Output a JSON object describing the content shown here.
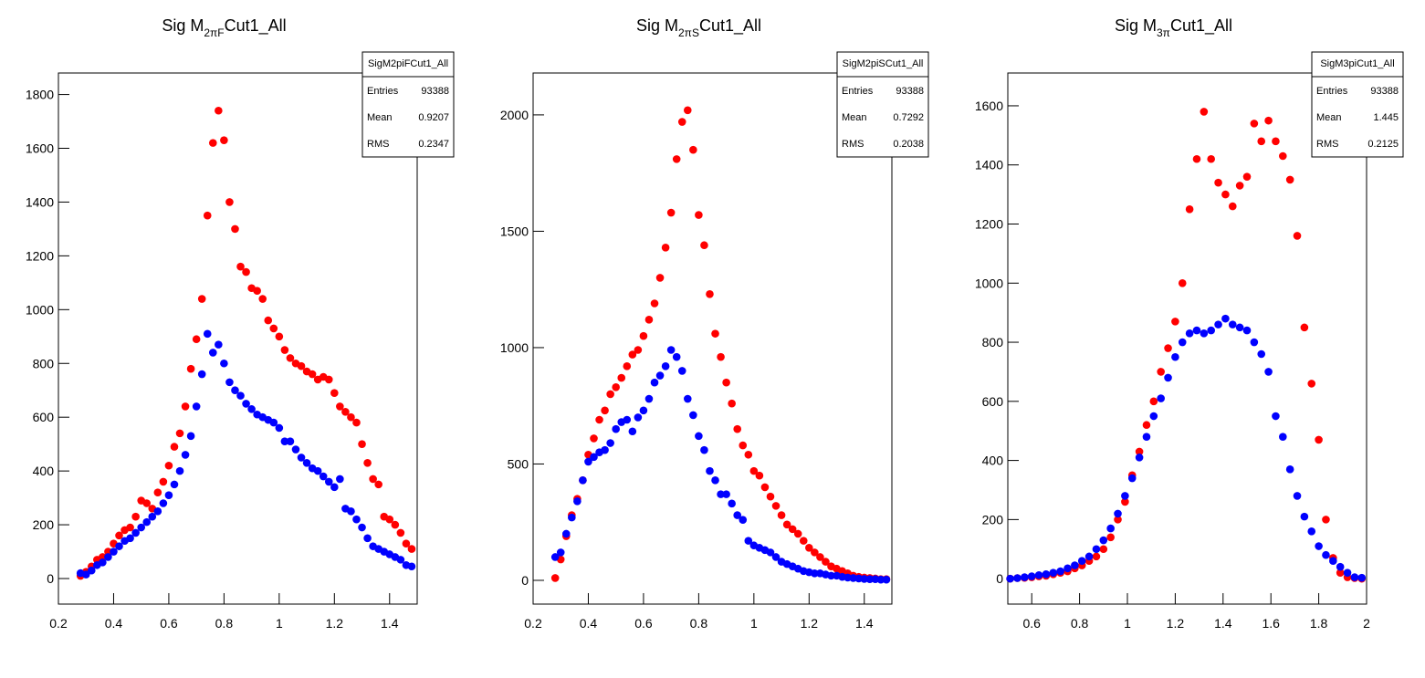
{
  "chart_data": [
    {
      "type": "scatter",
      "title": "Sig M",
      "title_subscript": "2πF",
      "title_suffix": "Cut1_All",
      "stats": {
        "name": "SigM2piFCut1_All",
        "rows": [
          {
            "label": "Entries",
            "value": 93388
          },
          {
            "label": "Mean",
            "value": 0.9207
          },
          {
            "label": "RMS",
            "value": 0.2347
          }
        ]
      },
      "xlim": [
        0.2,
        1.5
      ],
      "xticks": [
        0.2,
        0.4,
        0.6,
        0.8,
        1,
        1.2,
        1.4
      ],
      "ylim": [
        -95,
        1880
      ],
      "yticks": [
        0,
        200,
        400,
        600,
        800,
        1000,
        1200,
        1400,
        1600,
        1800
      ],
      "x": [
        0.28,
        0.3,
        0.32,
        0.34,
        0.36,
        0.38,
        0.4,
        0.42,
        0.44,
        0.46,
        0.48,
        0.5,
        0.52,
        0.54,
        0.56,
        0.58,
        0.6,
        0.62,
        0.64,
        0.66,
        0.68,
        0.7,
        0.72,
        0.74,
        0.76,
        0.78,
        0.8,
        0.82,
        0.84,
        0.86,
        0.88,
        0.9,
        0.92,
        0.94,
        0.96,
        0.98,
        1,
        1.02,
        1.04,
        1.06,
        1.08,
        1.1,
        1.12,
        1.14,
        1.16,
        1.18,
        1.2,
        1.22,
        1.24,
        1.26,
        1.28,
        1.3,
        1.32,
        1.34,
        1.36,
        1.38,
        1.4,
        1.42,
        1.44,
        1.46,
        1.48
      ],
      "series": [
        {
          "color": "#ff0000",
          "values": [
            10,
            25,
            45,
            70,
            80,
            100,
            130,
            160,
            180,
            190,
            230,
            290,
            280,
            260,
            320,
            360,
            420,
            490,
            540,
            640,
            780,
            890,
            1040,
            1350,
            1620,
            1740,
            1630,
            1400,
            1300,
            1160,
            1140,
            1080,
            1070,
            1040,
            960,
            930,
            900,
            850,
            820,
            800,
            790,
            770,
            760,
            740,
            750,
            740,
            690,
            640,
            620,
            600,
            580,
            500,
            430,
            370,
            350,
            230,
            220,
            200,
            170,
            130,
            110
          ]
        },
        {
          "color": "#0000ff",
          "values": [
            20,
            15,
            30,
            50,
            60,
            80,
            100,
            120,
            140,
            150,
            170,
            190,
            210,
            230,
            250,
            280,
            310,
            350,
            400,
            460,
            530,
            640,
            760,
            910,
            840,
            870,
            800,
            730,
            700,
            680,
            650,
            630,
            610,
            600,
            590,
            580,
            560,
            510,
            510,
            480,
            450,
            430,
            410,
            400,
            380,
            360,
            340,
            370,
            260,
            250,
            220,
            190,
            150,
            120,
            110,
            100,
            90,
            80,
            70,
            50,
            45
          ]
        }
      ]
    },
    {
      "type": "scatter",
      "title": "Sig M",
      "title_subscript": "2πS",
      "title_suffix": "Cut1_All",
      "stats": {
        "name": "SigM2piSCut1_All",
        "rows": [
          {
            "label": "Entries",
            "value": 93388
          },
          {
            "label": "Mean",
            "value": 0.7292
          },
          {
            "label": "RMS",
            "value": 0.2038
          }
        ]
      },
      "xlim": [
        0.2,
        1.5
      ],
      "xticks": [
        0.2,
        0.4,
        0.6,
        0.8,
        1,
        1.2,
        1.4
      ],
      "ylim": [
        -102,
        2180
      ],
      "yticks": [
        0,
        500,
        1000,
        1500,
        2000
      ],
      "x": [
        0.28,
        0.3,
        0.32,
        0.34,
        0.36,
        0.38,
        0.4,
        0.42,
        0.44,
        0.46,
        0.48,
        0.5,
        0.52,
        0.54,
        0.56,
        0.58,
        0.6,
        0.62,
        0.64,
        0.66,
        0.68,
        0.7,
        0.72,
        0.74,
        0.76,
        0.78,
        0.8,
        0.82,
        0.84,
        0.86,
        0.88,
        0.9,
        0.92,
        0.94,
        0.96,
        0.98,
        1,
        1.02,
        1.04,
        1.06,
        1.08,
        1.1,
        1.12,
        1.14,
        1.16,
        1.18,
        1.2,
        1.22,
        1.24,
        1.26,
        1.28,
        1.3,
        1.32,
        1.34,
        1.36,
        1.38,
        1.4,
        1.42,
        1.44,
        1.46,
        1.48
      ],
      "series": [
        {
          "color": "#ff0000",
          "values": [
            10,
            90,
            190,
            280,
            350,
            430,
            540,
            610,
            690,
            730,
            800,
            830,
            870,
            920,
            970,
            990,
            1050,
            1120,
            1190,
            1300,
            1430,
            1580,
            1810,
            1970,
            2020,
            1850,
            1570,
            1440,
            1230,
            1060,
            960,
            850,
            760,
            650,
            580,
            540,
            470,
            450,
            400,
            360,
            320,
            280,
            240,
            220,
            200,
            170,
            140,
            120,
            100,
            80,
            60,
            50,
            40,
            30,
            20,
            15,
            12,
            10,
            8,
            5,
            5
          ]
        },
        {
          "color": "#0000ff",
          "values": [
            100,
            120,
            200,
            270,
            340,
            430,
            510,
            530,
            550,
            560,
            590,
            650,
            680,
            690,
            640,
            700,
            730,
            780,
            850,
            880,
            920,
            990,
            960,
            900,
            780,
            710,
            620,
            560,
            470,
            430,
            370,
            370,
            330,
            280,
            260,
            170,
            150,
            140,
            130,
            120,
            100,
            80,
            70,
            60,
            50,
            40,
            35,
            30,
            30,
            25,
            20,
            20,
            15,
            12,
            10,
            8,
            6,
            5,
            5,
            3,
            3
          ]
        }
      ]
    },
    {
      "type": "scatter",
      "title": "Sig M",
      "title_subscript": "3π",
      "title_suffix": "Cut1_All",
      "stats": {
        "name": "SigM3piCut1_All",
        "rows": [
          {
            "label": "Entries",
            "value": 93388
          },
          {
            "label": "Mean",
            "value": 1.445
          },
          {
            "label": "RMS",
            "value": 0.2125
          }
        ]
      },
      "xlim": [
        0.5,
        2.0
      ],
      "xticks": [
        0.6,
        0.8,
        1,
        1.2,
        1.4,
        1.6,
        1.8,
        2
      ],
      "ylim": [
        -86,
        1711
      ],
      "yticks": [
        0,
        200,
        400,
        600,
        800,
        1000,
        1200,
        1400,
        1600
      ],
      "x": [
        0.51,
        0.54,
        0.57,
        0.6,
        0.63,
        0.66,
        0.69,
        0.72,
        0.75,
        0.78,
        0.81,
        0.84,
        0.87,
        0.9,
        0.93,
        0.96,
        0.99,
        1.02,
        1.05,
        1.08,
        1.11,
        1.14,
        1.17,
        1.2,
        1.23,
        1.26,
        1.29,
        1.32,
        1.35,
        1.38,
        1.41,
        1.44,
        1.47,
        1.5,
        1.53,
        1.56,
        1.59,
        1.62,
        1.65,
        1.68,
        1.71,
        1.74,
        1.77,
        1.8,
        1.83,
        1.86,
        1.89,
        1.92,
        1.95,
        1.98
      ],
      "series": [
        {
          "color": "#ff0000",
          "values": [
            0,
            2,
            3,
            5,
            8,
            10,
            15,
            20,
            25,
            35,
            45,
            60,
            75,
            100,
            140,
            200,
            260,
            350,
            430,
            520,
            600,
            700,
            780,
            870,
            1000,
            1250,
            1420,
            1580,
            1420,
            1340,
            1300,
            1260,
            1330,
            1360,
            1540,
            1480,
            1550,
            1480,
            1430,
            1350,
            1160,
            850,
            660,
            470,
            200,
            70,
            20,
            5,
            2,
            0
          ]
        },
        {
          "color": "#0000ff",
          "values": [
            0,
            2,
            5,
            8,
            12,
            15,
            20,
            25,
            35,
            45,
            60,
            75,
            100,
            130,
            170,
            220,
            280,
            340,
            410,
            480,
            550,
            610,
            680,
            750,
            800,
            830,
            840,
            830,
            840,
            860,
            880,
            860,
            850,
            840,
            800,
            760,
            700,
            550,
            480,
            370,
            280,
            210,
            160,
            110,
            80,
            60,
            40,
            20,
            5,
            3
          ]
        }
      ]
    }
  ]
}
